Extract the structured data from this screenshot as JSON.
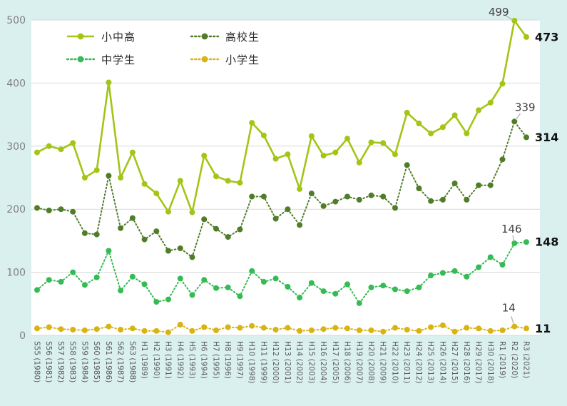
{
  "chart_data": {
    "type": "line",
    "title": "",
    "categories": [
      "S55 (1980)",
      "S56 (1981)",
      "S57 (1982)",
      "S58 (1983)",
      "S59 (1984)",
      "S60 (1985)",
      "S61 (1986)",
      "S62 (1987)",
      "S63 (1988)",
      "H1 (1989)",
      "H2 (1990)",
      "H3 (1991)",
      "H4 (1992)",
      "H5 (1993)",
      "H6 (1994)",
      "H7 (1995)",
      "H8 (1996)",
      "H9 (1997)",
      "H10 (1998)",
      "H11 (1999)",
      "H12 (2000)",
      "H13 (2001)",
      "H14 (2002)",
      "H15 (2003)",
      "H16 (2004)",
      "H17 (2005)",
      "H18 (2006)",
      "H19 (2007)",
      "H20 (2008)",
      "H21 (2009)",
      "H22 (2010)",
      "H23 (2011)",
      "H24 (2012)",
      "H25 (2013)",
      "H26 (2014)",
      "H27 (2015)",
      "H28 (2016)",
      "H29 (2017)",
      "H30 (2018)",
      "R1 (2019)",
      "R2 (2020)",
      "R3 (2021)"
    ],
    "series": [
      {
        "name": "小中高",
        "color": "#a2c516",
        "style": "solid",
        "values": [
          290,
          300,
          295,
          305,
          250,
          262,
          401,
          250,
          290,
          240,
          225,
          196,
          245,
          195,
          285,
          252,
          245,
          242,
          337,
          317,
          280,
          287,
          232,
          316,
          285,
          290,
          312,
          274,
          306,
          305,
          287,
          353,
          336,
          320,
          330,
          349,
          320,
          357,
          369,
          399,
          499,
          473
        ]
      },
      {
        "name": "高校生",
        "color": "#507d28",
        "style": "dotted",
        "values": [
          202,
          198,
          200,
          196,
          162,
          160,
          253,
          170,
          186,
          152,
          165,
          134,
          138,
          124,
          184,
          169,
          156,
          168,
          220,
          220,
          185,
          200,
          175,
          225,
          205,
          212,
          220,
          215,
          222,
          220,
          202,
          270,
          233,
          213,
          215,
          241,
          215,
          238,
          238,
          279,
          339,
          314
        ]
      },
      {
        "name": "中学生",
        "color": "#35bb53",
        "style": "dotted",
        "values": [
          72,
          88,
          85,
          100,
          80,
          92,
          134,
          71,
          93,
          81,
          53,
          57,
          90,
          64,
          88,
          75,
          76,
          62,
          102,
          85,
          90,
          77,
          60,
          83,
          70,
          66,
          81,
          51,
          76,
          79,
          73,
          70,
          76,
          95,
          99,
          102,
          93,
          108,
          124,
          112,
          146,
          148
        ]
      },
      {
        "name": "小学生",
        "color": "#d9b312",
        "style": "dotted",
        "values": [
          11,
          13,
          10,
          9,
          8,
          10,
          14,
          9,
          11,
          7,
          7,
          5,
          17,
          7,
          13,
          8,
          13,
          12,
          15,
          12,
          9,
          12,
          7,
          8,
          10,
          12,
          11,
          8,
          8,
          6,
          12,
          9,
          7,
          13,
          16,
          6,
          12,
          11,
          7,
          8,
          14,
          11
        ]
      }
    ],
    "ylim": [
      0,
      500
    ],
    "yticks": [
      0,
      100,
      200,
      300,
      400,
      500
    ],
    "grid": true,
    "legend_position": "top-left-inside",
    "annotations": [
      {
        "text": "499",
        "series": 0,
        "index": 40
      },
      {
        "text": "339",
        "series": 1,
        "index": 40
      },
      {
        "text": "146",
        "series": 2,
        "index": 40
      },
      {
        "text": "14",
        "series": 3,
        "index": 40
      }
    ],
    "end_labels": [
      {
        "text": "473",
        "series": 0
      },
      {
        "text": "314",
        "series": 1
      },
      {
        "text": "148",
        "series": 2
      },
      {
        "text": "11",
        "series": 3
      }
    ],
    "colors": {
      "background": "#daf0ee",
      "plot_background": "#ffffff",
      "grid": "#d9d9d9",
      "axis_text": "#808080",
      "tick_text": "#595959",
      "annotation_text": "#404040",
      "leader": "#b3b3b3",
      "end_label_text": "#111111"
    }
  }
}
